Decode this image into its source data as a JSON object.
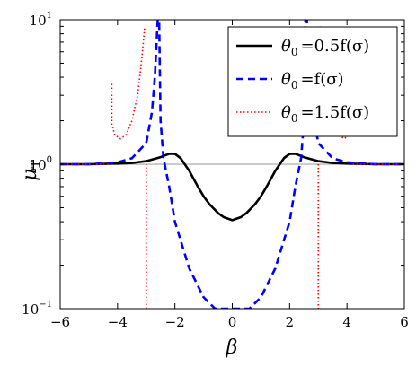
{
  "chart_data": {
    "type": "line",
    "xlabel": "β",
    "ylabel": {
      "symbol": "μ",
      "subscript": "T"
    },
    "xlim": [
      -6,
      6
    ],
    "ylim": [
      0.1,
      10
    ],
    "yscale": "log",
    "x_ticks": [
      "−6",
      "−4",
      "−2",
      "0",
      "2",
      "4",
      "6"
    ],
    "y_ticks": [
      {
        "base": "10",
        "exp": "−1"
      },
      {
        "base": "10",
        "exp": "0"
      },
      {
        "base": "10",
        "exp": "1"
      }
    ],
    "grid": false,
    "reference_line": 1,
    "legend_position": "top-right",
    "series": [
      {
        "name": "θ0 =0.5f(σ)",
        "label_parts": {
          "lhs": "θ",
          "sub": "0",
          "rhs": "=0.5f(σ)"
        },
        "color": "#000000",
        "style": "solid",
        "x": [
          -6,
          -5,
          -4,
          -3.5,
          -3,
          -2.5,
          -2.2,
          -2,
          -1.8,
          -1.5,
          -1.2,
          -1,
          -0.8,
          -0.5,
          -0.3,
          0,
          0.3,
          0.5,
          0.8,
          1,
          1.2,
          1.5,
          1.8,
          2,
          2.2,
          2.5,
          3,
          3.5,
          4,
          5,
          6
        ],
        "y": [
          1,
          1,
          1.01,
          1.02,
          1.05,
          1.12,
          1.18,
          1.18,
          1.1,
          0.9,
          0.7,
          0.6,
          0.53,
          0.46,
          0.43,
          0.41,
          0.43,
          0.46,
          0.53,
          0.6,
          0.7,
          0.9,
          1.1,
          1.18,
          1.18,
          1.12,
          1.05,
          1.02,
          1.01,
          1,
          1
        ]
      },
      {
        "name": "θ0 =f(σ)",
        "label_parts": {
          "lhs": "θ",
          "sub": "0",
          "rhs": "=f(σ)"
        },
        "color": "#0000ff",
        "style": "dashed",
        "x": [
          -6,
          -5,
          -4,
          -3.5,
          -3,
          -2.8,
          -2.7,
          -2.6,
          -2.55,
          -2.5,
          -2.4,
          -2.2,
          -2,
          -1.5,
          -1,
          -0.6,
          0,
          0.6,
          1,
          1.5,
          2,
          2.2,
          2.4,
          2.5,
          2.55,
          2.6,
          2.7,
          2.8,
          3,
          3.5,
          4,
          5,
          6
        ],
        "y": [
          1,
          1,
          1.03,
          1.1,
          1.4,
          2.3,
          4,
          10,
          10,
          2,
          1.1,
          0.7,
          0.4,
          0.19,
          0.12,
          0.1,
          0.1,
          0.1,
          0.12,
          0.19,
          0.4,
          0.7,
          1.1,
          2,
          10,
          10,
          4,
          2.3,
          1.4,
          1.1,
          1.03,
          1,
          1
        ]
      },
      {
        "name": "θ0 =1.5f(σ)",
        "label_parts": {
          "lhs": "θ",
          "sub": "0",
          "rhs": "=1.5f(σ)"
        },
        "color": "#ff0000",
        "style": "dotted",
        "segments": [
          {
            "x": [
              -6,
              -5,
              -4.3,
              -4.2
            ],
            "y": [
              1,
              1,
              1,
              1
            ]
          },
          {
            "x": [
              -4.2,
              -4.2,
              -4.1,
              -3.9,
              -3.7,
              -3.5,
              -3.3,
              -3.15,
              -3.05
            ],
            "y": [
              3.6,
              1.9,
              1.6,
              1.5,
              1.6,
              2.0,
              3.0,
              5.5,
              9
            ]
          },
          {
            "x": [
              -3.0,
              -3.0,
              -3.0
            ],
            "y": [
              0.1,
              0.8,
              1.0
            ]
          },
          {
            "x": [
              3.0,
              3.0,
              3.0
            ],
            "y": [
              1.0,
              0.8,
              0.1
            ]
          },
          {
            "x": [
              3.05,
              3.15,
              3.3,
              3.5,
              3.7,
              3.9,
              4.1,
              4.2,
              4.2
            ],
            "y": [
              9,
              5.5,
              3.0,
              2.0,
              1.6,
              1.5,
              1.6,
              1.9,
              3.6
            ]
          },
          {
            "x": [
              4.2,
              4.3,
              5,
              6
            ],
            "y": [
              1,
              1,
              1,
              1
            ]
          }
        ]
      }
    ]
  }
}
